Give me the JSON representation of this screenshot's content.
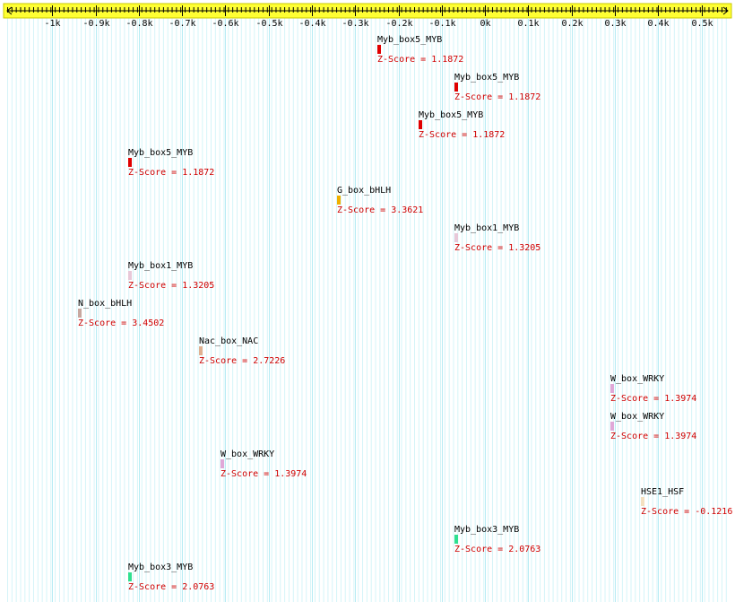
{
  "chart_data": {
    "type": "motif-map",
    "xlim": [
      -1104,
      561
    ],
    "xticks": [
      {
        "value": -1000,
        "label": "-1k"
      },
      {
        "value": -900,
        "label": "-0.9k"
      },
      {
        "value": -800,
        "label": "-0.8k"
      },
      {
        "value": -700,
        "label": "-0.7k"
      },
      {
        "value": -600,
        "label": "-0.6k"
      },
      {
        "value": -500,
        "label": "-0.5k"
      },
      {
        "value": -400,
        "label": "-0.4k"
      },
      {
        "value": -300,
        "label": "-0.3k"
      },
      {
        "value": -200,
        "label": "-0.2k"
      },
      {
        "value": -100,
        "label": "-0.1k"
      },
      {
        "value": 0,
        "label": "0k"
      },
      {
        "value": 100,
        "label": "0.1k"
      },
      {
        "value": 200,
        "label": "0.2k"
      },
      {
        "value": 300,
        "label": "0.3k"
      },
      {
        "value": 400,
        "label": "0.4k"
      },
      {
        "value": 500,
        "label": "0.5k"
      }
    ],
    "grid": true,
    "motifs": {
      "names": [
        "Myb_box5_MYB",
        "Myb_box5_MYB",
        "Myb_box5_MYB",
        "Myb_box5_MYB",
        "G_box_bHLH",
        "Myb_box1_MYB",
        "Myb_box1_MYB",
        "N_box_bHLH",
        "Nac_box_NAC",
        "W_box_WRKY",
        "W_box_WRKY",
        "W_box_WRKY",
        "HSE1_HSF",
        "Myb_box3_MYB",
        "Myb_box3_MYB"
      ],
      "positions": [
        -248,
        -70,
        -153,
        -824,
        -342,
        -70,
        -824,
        -940,
        -660,
        290,
        290,
        -611,
        360,
        -70,
        -824
      ],
      "colors": [
        "#e00000",
        "#e00000",
        "#e00000",
        "#e00000",
        "#f0b000",
        "#e8c8d8",
        "#e8c8d8",
        "#c8a8a0",
        "#e0b090",
        "#e0a8d8",
        "#e0a8d8",
        "#e0a8d8",
        "#f4e0c0",
        "#30e090",
        "#30e090"
      ],
      "values": [
        1.1872,
        1.1872,
        1.1872,
        1.1872,
        3.3621,
        1.3205,
        1.3205,
        3.4502,
        2.7226,
        1.3974,
        1.3974,
        1.3974,
        -0.1216,
        2.0763,
        2.0763
      ],
      "value_labels": [
        "Z-Score = 1.1872",
        "Z-Score = 1.1872",
        "Z-Score = 1.1872",
        "Z-Score = 1.1872",
        "Z-Score = 3.3621",
        "Z-Score = 1.3205",
        "Z-Score = 1.3205",
        "Z-Score = 3.4502",
        "Z-Score = 2.7226",
        "Z-Score = 1.3974",
        "Z-Score = 1.3974",
        "Z-Score = 1.3974",
        "Z-Score = -0.1216",
        "Z-Score = 2.0763",
        "Z-Score = 2.0763"
      ]
    }
  }
}
